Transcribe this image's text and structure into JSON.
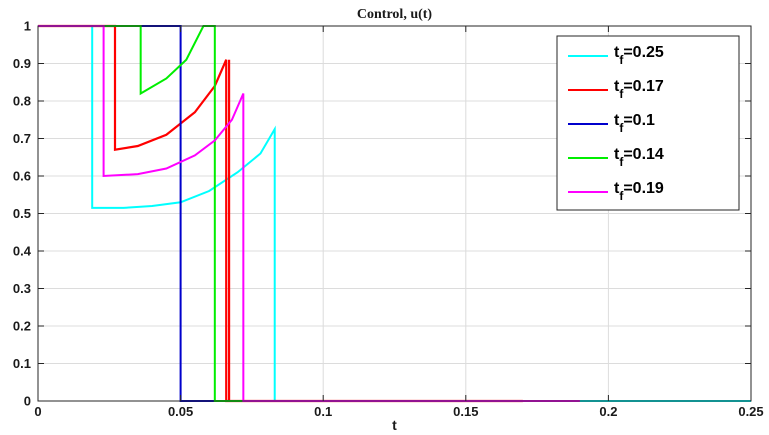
{
  "chart_data": {
    "type": "line",
    "title": "Control, u(t)",
    "xlabel": "t",
    "ylabel": "",
    "xlim": [
      0,
      0.25
    ],
    "ylim": [
      0,
      1
    ],
    "xticks": [
      0,
      0.05,
      0.1,
      0.15,
      0.2,
      0.25
    ],
    "xtick_labels": [
      "0",
      "0.05",
      "0.1",
      "0.15",
      "0.2",
      "0.25"
    ],
    "yticks": [
      0,
      0.1,
      0.2,
      0.3,
      0.4,
      0.5,
      0.6,
      0.7,
      0.8,
      0.9,
      1
    ],
    "ytick_labels": [
      "0",
      "0.1",
      "0.2",
      "0.3",
      "0.4",
      "0.5",
      "0.6",
      "0.7",
      "0.8",
      "0.9",
      "1"
    ],
    "grid": true,
    "legend_position": "top-right",
    "series": [
      {
        "name": "t_f=0.25",
        "color": "#00ffff",
        "points": [
          [
            0,
            1
          ],
          [
            0.019,
            1
          ],
          [
            0.019,
            0.515
          ],
          [
            0.03,
            0.515
          ],
          [
            0.04,
            0.52
          ],
          [
            0.05,
            0.53
          ],
          [
            0.06,
            0.56
          ],
          [
            0.07,
            0.61
          ],
          [
            0.078,
            0.66
          ],
          [
            0.083,
            0.725
          ],
          [
            0.083,
            0
          ],
          [
            0.25,
            0
          ]
        ]
      },
      {
        "name": "t_f=0.17",
        "color": "#ff0000",
        "points": [
          [
            0,
            1
          ],
          [
            0.027,
            1
          ],
          [
            0.027,
            0.67
          ],
          [
            0.035,
            0.68
          ],
          [
            0.045,
            0.71
          ],
          [
            0.055,
            0.77
          ],
          [
            0.062,
            0.84
          ],
          [
            0.066,
            0.91
          ],
          [
            0.066,
            0
          ],
          [
            0.067,
            0
          ],
          [
            0.067,
            0.91
          ],
          [
            0.067,
            0
          ],
          [
            0.17,
            0
          ]
        ]
      },
      {
        "name": "t_f=0.1",
        "color": "#0000cc",
        "points": [
          [
            0,
            1
          ],
          [
            0.05,
            1
          ],
          [
            0.05,
            0
          ],
          [
            0.1,
            0
          ]
        ]
      },
      {
        "name": "t_f=0.14",
        "color": "#00ee00",
        "points": [
          [
            0,
            1
          ],
          [
            0.036,
            1
          ],
          [
            0.036,
            0.82
          ],
          [
            0.045,
            0.86
          ],
          [
            0.052,
            0.91
          ],
          [
            0.058,
            1
          ],
          [
            0.062,
            1
          ],
          [
            0.062,
            0
          ],
          [
            0.14,
            0
          ]
        ]
      },
      {
        "name": "t_f=0.19",
        "color": "#ff00ff",
        "points": [
          [
            0,
            1
          ],
          [
            0.023,
            1
          ],
          [
            0.023,
            0.6
          ],
          [
            0.035,
            0.605
          ],
          [
            0.045,
            0.62
          ],
          [
            0.055,
            0.655
          ],
          [
            0.062,
            0.695
          ],
          [
            0.068,
            0.75
          ],
          [
            0.072,
            0.82
          ],
          [
            0.072,
            0
          ],
          [
            0.19,
            0
          ]
        ]
      }
    ],
    "legend": [
      {
        "main": "t",
        "sub": "f",
        "value": "=0.25"
      },
      {
        "main": "t",
        "sub": "f",
        "value": "=0.17"
      },
      {
        "main": "t",
        "sub": "f",
        "value": "=0.1"
      },
      {
        "main": "t",
        "sub": "f",
        "value": "=0.14"
      },
      {
        "main": "t",
        "sub": "f",
        "value": "=0.19"
      }
    ]
  }
}
